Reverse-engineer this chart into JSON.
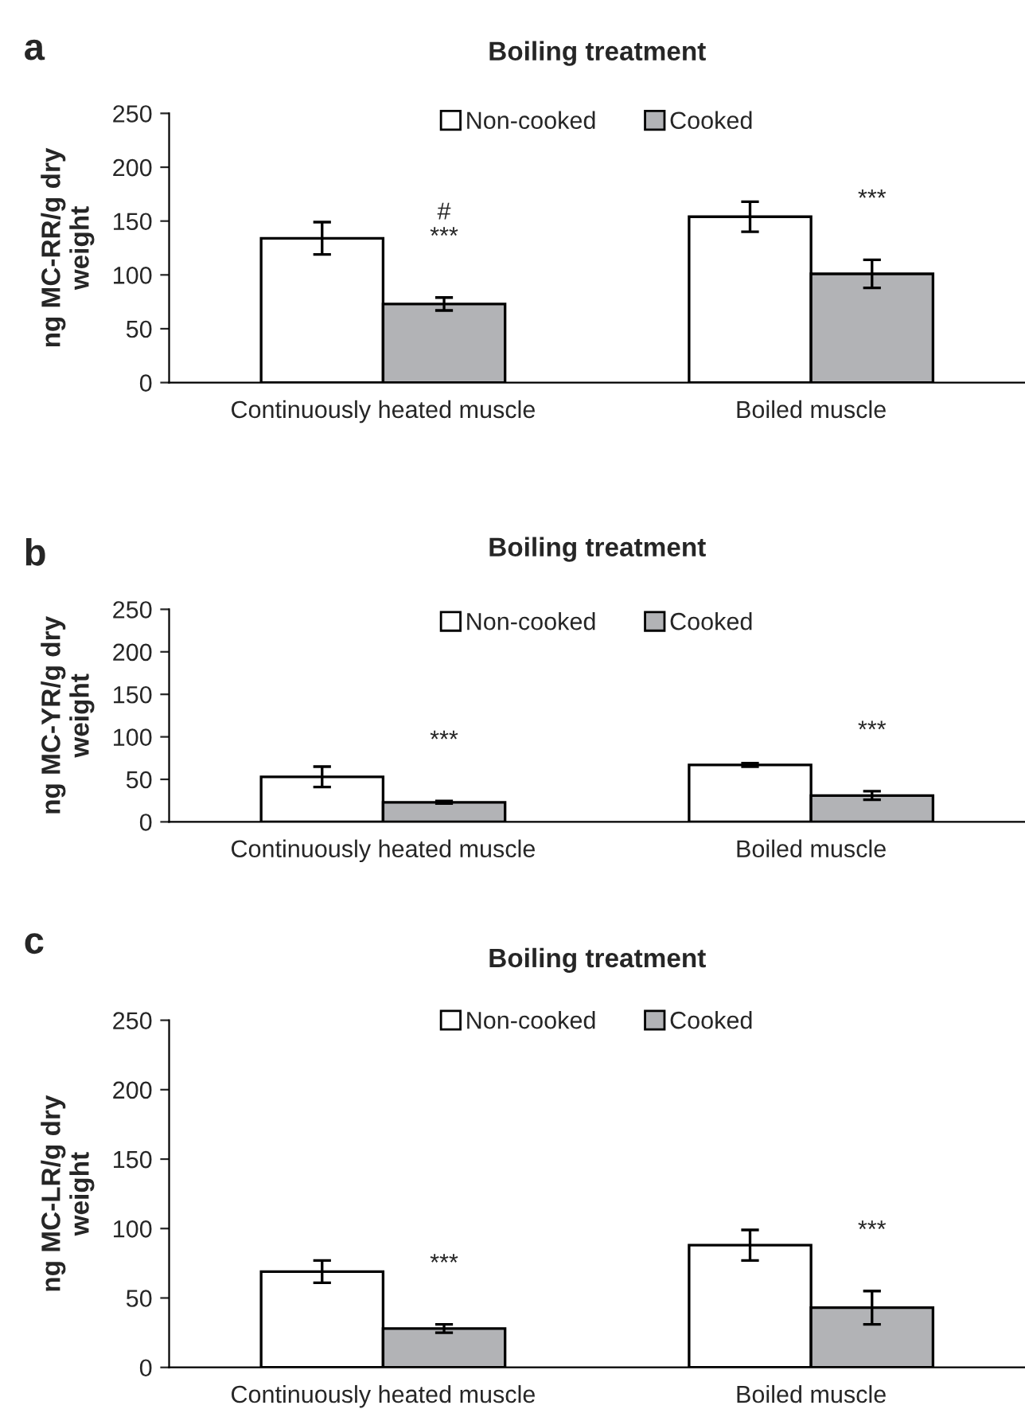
{
  "chart_data": [
    {
      "type": "bar",
      "title": "Boiling treatment",
      "ylabel": "ng MC-RR/g dry weight",
      "categories": [
        "Continuously heated muscle",
        "Boiled muscle"
      ],
      "series": [
        {
          "name": "Non-cooked",
          "color": "#ffffff",
          "values": [
            134,
            154
          ],
          "errors": [
            15,
            14
          ]
        },
        {
          "name": "Cooked",
          "color": "#b2b3b6",
          "values": [
            73,
            101
          ],
          "errors": [
            6,
            13
          ]
        }
      ],
      "ylim": [
        0,
        250
      ],
      "yticks": [
        0,
        50,
        100,
        150,
        200,
        250
      ],
      "grid": false,
      "legend": "top",
      "annotations": [
        "a",
        "#\n***",
        "***"
      ]
    },
    {
      "type": "bar",
      "title": "Boiling treatment",
      "ylabel": "ng MC-YR/g dry weight",
      "categories": [
        "Continuously heated muscle",
        "Boiled muscle"
      ],
      "series": [
        {
          "name": "Non-cooked",
          "color": "#ffffff",
          "values": [
            53,
            67
          ],
          "errors": [
            12,
            2
          ]
        },
        {
          "name": "Cooked",
          "color": "#b2b3b6",
          "values": [
            23,
            31
          ],
          "errors": [
            1.5,
            5
          ]
        }
      ],
      "ylim": [
        0,
        250
      ],
      "yticks": [
        0,
        50,
        100,
        150,
        200,
        250
      ],
      "grid": false,
      "legend": "top",
      "annotations": [
        "b",
        "***",
        "***"
      ]
    },
    {
      "type": "bar",
      "title": "Boiling treatment",
      "ylabel": "ng MC-LR/g dry weight",
      "categories": [
        "Continuously heated muscle",
        "Boiled muscle"
      ],
      "series": [
        {
          "name": "Non-cooked",
          "color": "#ffffff",
          "values": [
            69,
            88
          ],
          "errors": [
            8,
            11
          ]
        },
        {
          "name": "Cooked",
          "color": "#b2b3b6",
          "values": [
            28,
            43
          ],
          "errors": [
            3,
            12
          ]
        }
      ],
      "ylim": [
        0,
        250
      ],
      "yticks": [
        0,
        50,
        100,
        150,
        200,
        250
      ],
      "grid": false,
      "legend": "top",
      "annotations": [
        "c",
        "***",
        "***"
      ]
    }
  ]
}
